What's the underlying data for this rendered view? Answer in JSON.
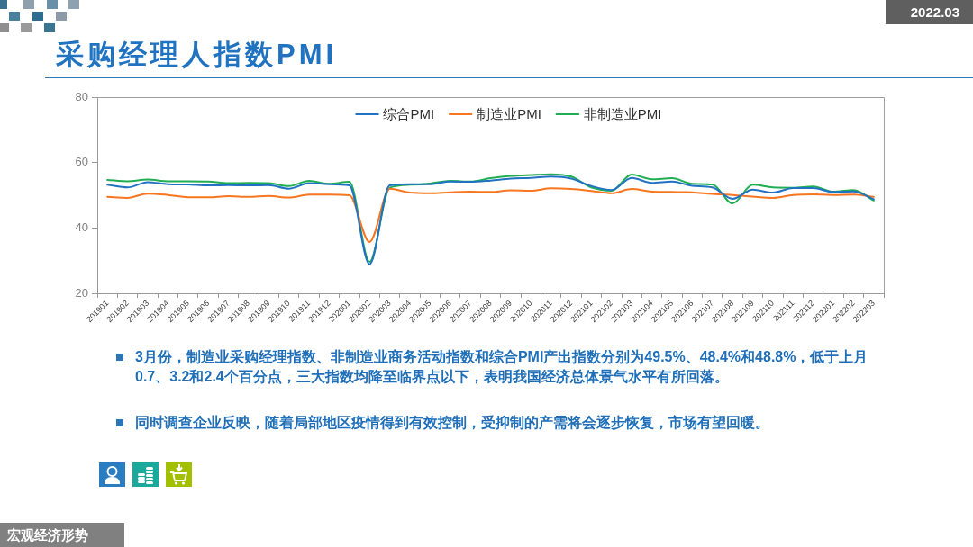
{
  "chart_data": {
    "type": "line",
    "title": "采购经理人指数PMI",
    "categories": [
      "201901",
      "201902",
      "201903",
      "201904",
      "201905",
      "201906",
      "201907",
      "201908",
      "201909",
      "201910",
      "201911",
      "201912",
      "202001",
      "202002",
      "202003",
      "202004",
      "202005",
      "202006",
      "202007",
      "202008",
      "202009",
      "202010",
      "202011",
      "202012",
      "202101",
      "202102",
      "202103",
      "202104",
      "202105",
      "202106",
      "202107",
      "202108",
      "202109",
      "202110",
      "202111",
      "202112",
      "202201",
      "202202",
      "202203"
    ],
    "series": [
      {
        "name": "综合PMI",
        "color": "#2272c3",
        "values": [
          53.2,
          52.4,
          54.0,
          53.4,
          53.3,
          53.0,
          53.1,
          53.0,
          53.1,
          52.0,
          53.7,
          53.4,
          53.0,
          28.9,
          53.0,
          53.4,
          53.4,
          54.2,
          54.1,
          54.5,
          55.1,
          55.3,
          55.7,
          55.1,
          52.8,
          51.6,
          55.3,
          53.8,
          54.2,
          52.9,
          52.4,
          48.9,
          51.7,
          50.8,
          52.2,
          52.2,
          51.0,
          51.2,
          48.8
        ]
      },
      {
        "name": "制造业PMI",
        "color": "#f8761f",
        "values": [
          49.5,
          49.2,
          50.5,
          50.1,
          49.4,
          49.4,
          49.7,
          49.5,
          49.8,
          49.3,
          50.2,
          50.2,
          50.0,
          35.7,
          52.0,
          50.8,
          50.6,
          50.9,
          51.1,
          51.0,
          51.5,
          51.4,
          52.1,
          51.9,
          51.3,
          50.6,
          51.9,
          51.1,
          51.0,
          50.9,
          50.4,
          50.1,
          49.6,
          49.2,
          50.1,
          50.3,
          50.1,
          50.2,
          49.5
        ]
      },
      {
        "name": "非制造业PMI",
        "color": "#1fae52",
        "values": [
          54.7,
          54.3,
          54.8,
          54.3,
          54.3,
          54.2,
          53.7,
          53.8,
          53.7,
          52.8,
          54.4,
          53.5,
          54.1,
          29.6,
          52.3,
          53.2,
          53.6,
          54.4,
          54.2,
          55.2,
          55.9,
          56.2,
          56.4,
          55.7,
          52.4,
          51.4,
          56.3,
          54.9,
          55.2,
          53.5,
          53.3,
          47.5,
          53.2,
          52.4,
          52.3,
          52.7,
          51.1,
          51.6,
          48.4
        ]
      }
    ],
    "ylim": [
      20,
      80
    ],
    "yticks": [
      20,
      40,
      60,
      80
    ],
    "grid": false,
    "legend": "top",
    "annotations": [
      "2022.03",
      "3月份，制造业采购经理指数、非制造业商务活动指数和综合PMI产出指数分别为49.5%、48.4%和48.8%，低于上月0.7、3.2和2.4个百分点，三大指数均降至临界点以下，表明我国经济总体景气水平有所回落。",
      "同时调查企业反映，随着局部地区疫情得到有效控制，受抑制的产需将会逐步恢复，市场有望回暖。",
      "宏观经济形势"
    ]
  }
}
